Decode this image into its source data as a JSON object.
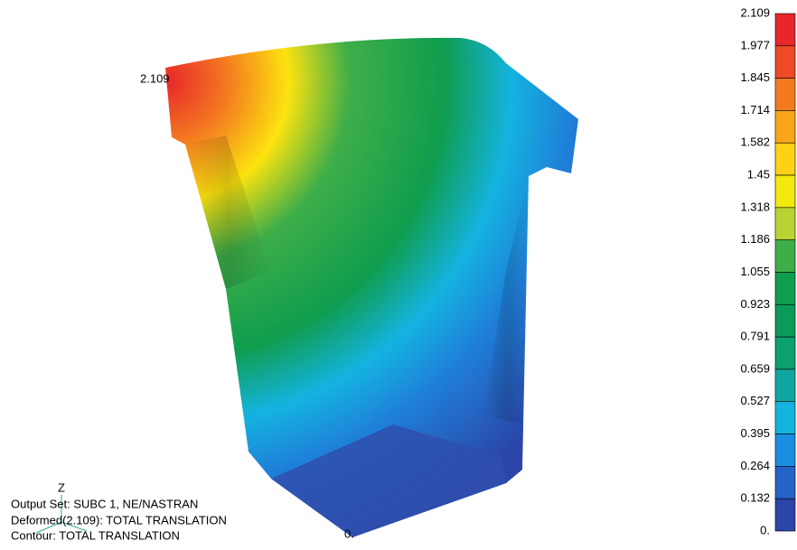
{
  "annotations": {
    "max_label": "2.109",
    "min_label": "0.",
    "axis_label": "Z"
  },
  "info": [
    "Output Set: SUBC 1, NE/NASTRAN",
    "Deformed(2.109): TOTAL TRANSLATION",
    "Contour: TOTAL TRANSLATION"
  ],
  "legend": {
    "labels": [
      "2.109",
      "1.977",
      "1.845",
      "1.714",
      "1.582",
      "1.45",
      "1.318",
      "1.186",
      "1.055",
      "0.923",
      "0.791",
      "0.659",
      "0.527",
      "0.395",
      "0.264",
      "0.132",
      "0."
    ],
    "colors": [
      "#e8262b",
      "#ee4a26",
      "#f47a20",
      "#f9a51a",
      "#fcd116",
      "#f3e80f",
      "#b7d433",
      "#3fae49",
      "#0f9d4e",
      "#0b9a5a",
      "#0aa070",
      "#10a6a0",
      "#14b3e0",
      "#1a8ee0",
      "#2563c8",
      "#2b45a8"
    ]
  }
}
